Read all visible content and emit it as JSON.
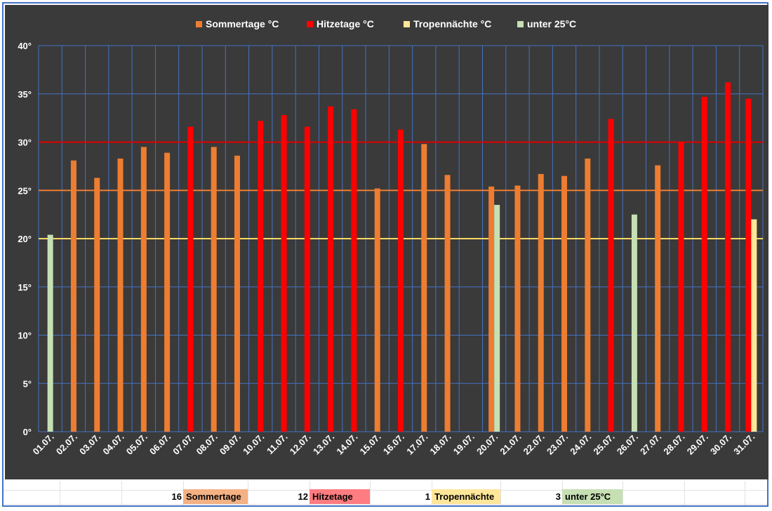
{
  "colors": {
    "sommertage": "#ed7d31",
    "hitzetage": "#ff0000",
    "tropennaechte": "#ffe699",
    "unter25": "#c6e0b4",
    "plot_bg": "#3a3a3a",
    "grid": "#4472c4",
    "line_30": "#e00000",
    "line_25": "#ed7d31",
    "line_20": "#ffd966"
  },
  "chart_data": {
    "type": "bar",
    "legend": [
      "Sommertage °C",
      "Hitzetage °C",
      "Tropennächte °C",
      "unter 25°C"
    ],
    "legend_position": "top",
    "categories": [
      "01.07.",
      "02.07.",
      "03.07.",
      "04.07.",
      "05.07.",
      "06.07.",
      "07.07.",
      "08.07.",
      "09.07.",
      "10.07.",
      "11.07.",
      "12.07.",
      "13.07.",
      "14.07.",
      "15.07.",
      "16.07.",
      "17.07.",
      "18.07.",
      "19.07.",
      "20.07.",
      "21.07.",
      "22.07.",
      "23.07.",
      "24.07.",
      "25.07.",
      "26.07.",
      "27.07.",
      "28.07.",
      "29.07.",
      "30.07.",
      "31.07."
    ],
    "series": [
      {
        "name": "Sommertage °C",
        "values": [
          null,
          28.1,
          26.3,
          28.3,
          29.5,
          28.9,
          null,
          29.5,
          28.6,
          null,
          null,
          null,
          null,
          null,
          25.2,
          null,
          29.8,
          26.6,
          null,
          25.4,
          25.5,
          26.7,
          26.5,
          28.3,
          null,
          null,
          27.6,
          null,
          null,
          null,
          null
        ]
      },
      {
        "name": "Hitzetage °C",
        "values": [
          null,
          null,
          null,
          null,
          null,
          null,
          31.6,
          null,
          null,
          32.2,
          32.8,
          31.6,
          33.7,
          33.4,
          null,
          31.3,
          null,
          null,
          null,
          null,
          null,
          null,
          null,
          null,
          32.4,
          null,
          null,
          30.0,
          34.7,
          36.2,
          34.5
        ]
      },
      {
        "name": "Tropennächte °C",
        "values": [
          null,
          null,
          null,
          null,
          null,
          null,
          null,
          null,
          null,
          null,
          null,
          null,
          null,
          null,
          null,
          null,
          null,
          null,
          null,
          null,
          null,
          null,
          null,
          null,
          null,
          null,
          null,
          null,
          null,
          null,
          22.0
        ]
      },
      {
        "name": "unter 25°C",
        "values": [
          20.4,
          null,
          null,
          null,
          null,
          null,
          null,
          null,
          null,
          null,
          null,
          null,
          null,
          null,
          null,
          null,
          null,
          null,
          null,
          23.5,
          null,
          null,
          null,
          null,
          null,
          22.5,
          null,
          null,
          null,
          null,
          null
        ]
      }
    ],
    "reference_lines": [
      30,
      25,
      20
    ],
    "y_ticks": [
      "0°",
      "5°",
      "10°",
      "15°",
      "20°",
      "25°",
      "30°",
      "35°",
      "40°"
    ],
    "ylim": [
      0,
      40
    ],
    "grid": true
  },
  "summary": [
    {
      "count": "16",
      "label": "Sommertage"
    },
    {
      "count": "12",
      "label": "Hitzetage"
    },
    {
      "count": "1",
      "label": "Tropennächte"
    },
    {
      "count": "3",
      "label": "unter 25°C"
    }
  ]
}
